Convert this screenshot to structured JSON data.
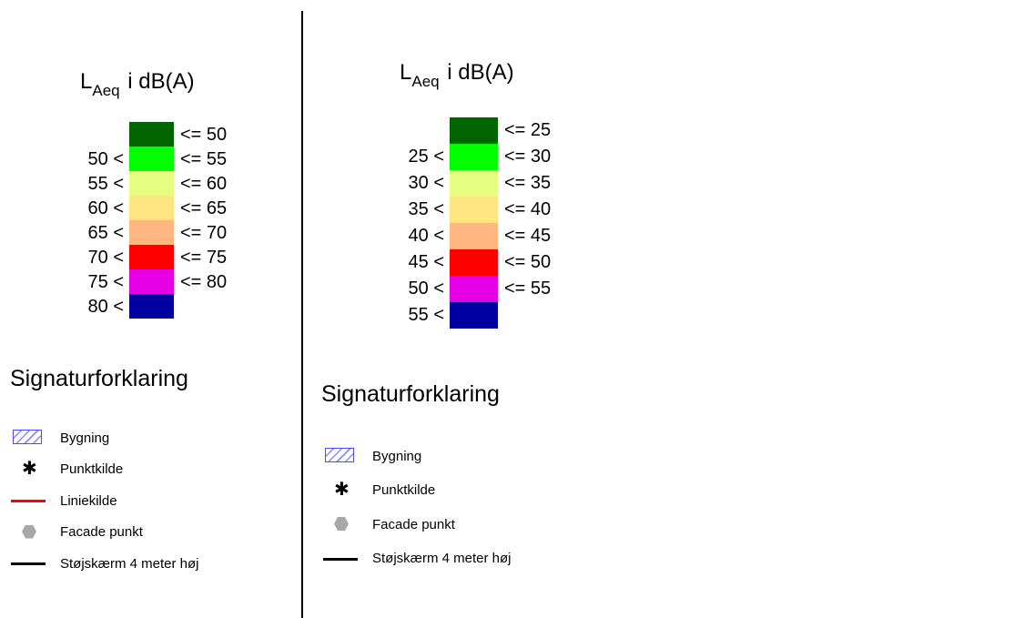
{
  "left_panel": {
    "title_main": "L",
    "title_sub": "Aeq",
    "title_rest": "i dB(A)",
    "scale": [
      {
        "left": "",
        "right": "<= 50",
        "color": "#006400"
      },
      {
        "left": "50 <",
        "right": "<= 55",
        "color": "#00ff00"
      },
      {
        "left": "55 <",
        "right": "<= 60",
        "color": "#e6ff80"
      },
      {
        "left": "60 <",
        "right": "<= 65",
        "color": "#ffe680"
      },
      {
        "left": "65 <",
        "right": "<= 70",
        "color": "#ffb680"
      },
      {
        "left": "70 <",
        "right": "<= 75",
        "color": "#ff0000"
      },
      {
        "left": "75 <",
        "right": "<= 80",
        "color": "#e600e6"
      },
      {
        "left": "80 <",
        "right": "",
        "color": "#0000a0"
      }
    ],
    "legend_title": "Signaturforklaring",
    "legend": [
      {
        "symbol": "building-hatch-icon",
        "label": "Bygning"
      },
      {
        "symbol": "asterisk-icon",
        "label": "Punktkilde"
      },
      {
        "symbol": "red-line-icon",
        "label": "Liniekilde",
        "color": "#ff0000"
      },
      {
        "symbol": "gray-hexagon-icon",
        "label": "Facade punkt"
      },
      {
        "symbol": "black-line-icon",
        "label": "Støjskærm 4 meter høj",
        "color": "#000000"
      }
    ]
  },
  "right_panel": {
    "title_main": "L",
    "title_sub": "Aeq",
    "title_rest": "i dB(A)",
    "scale": [
      {
        "left": "",
        "right": "<= 25",
        "color": "#006400"
      },
      {
        "left": "25 <",
        "right": "<= 30",
        "color": "#00ff00"
      },
      {
        "left": "30 <",
        "right": "<= 35",
        "color": "#e6ff80"
      },
      {
        "left": "35 <",
        "right": "<= 40",
        "color": "#ffe680"
      },
      {
        "left": "40 <",
        "right": "<= 45",
        "color": "#ffb680"
      },
      {
        "left": "45 <",
        "right": "<= 50",
        "color": "#ff0000"
      },
      {
        "left": "50 <",
        "right": "<= 55",
        "color": "#e600e6"
      },
      {
        "left": "55 <",
        "right": "",
        "color": "#0000a0"
      }
    ],
    "legend_title": "Signaturforklaring",
    "legend": [
      {
        "symbol": "building-hatch-icon",
        "label": "Bygning"
      },
      {
        "symbol": "asterisk-icon",
        "label": "Punktkilde"
      },
      {
        "symbol": "gray-hexagon-icon",
        "label": "Facade punkt"
      },
      {
        "symbol": "black-line-icon",
        "label": "Støjskærm 4 meter høj",
        "color": "#000000"
      }
    ]
  }
}
